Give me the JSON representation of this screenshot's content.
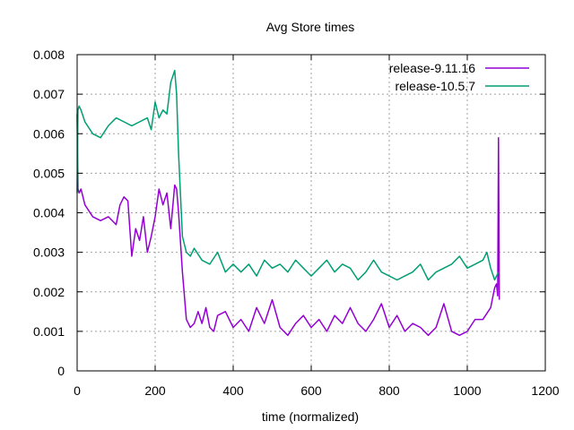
{
  "chart_data": {
    "type": "line",
    "title": "Avg Store times",
    "xlabel": "time (normalized)",
    "ylabel": "",
    "xlim": [
      0,
      1200
    ],
    "ylim": [
      0,
      0.008
    ],
    "xticks": [
      "0",
      "200",
      "400",
      "600",
      "800",
      "1000",
      "1200"
    ],
    "yticks": [
      "0",
      "0.001",
      "0.002",
      "0.003",
      "0.004",
      "0.005",
      "0.006",
      "0.007",
      "0.008"
    ],
    "grid": true,
    "legend_position": "top-right",
    "series": [
      {
        "name": "release-9.11.16",
        "color": "#9400d3",
        "x": [
          0,
          2,
          5,
          10,
          20,
          40,
          60,
          80,
          100,
          110,
          120,
          130,
          140,
          150,
          160,
          170,
          180,
          190,
          200,
          210,
          220,
          230,
          240,
          250,
          255,
          260,
          270,
          280,
          290,
          300,
          310,
          320,
          330,
          340,
          350,
          360,
          380,
          400,
          420,
          440,
          460,
          480,
          500,
          520,
          540,
          560,
          580,
          600,
          620,
          640,
          660,
          680,
          700,
          720,
          740,
          760,
          780,
          800,
          820,
          840,
          860,
          880,
          900,
          920,
          940,
          960,
          980,
          1000,
          1020,
          1040,
          1060,
          1070,
          1075,
          1078,
          1080,
          1082
        ],
        "values": [
          0.0065,
          0.0046,
          0.0045,
          0.0046,
          0.0042,
          0.0039,
          0.0038,
          0.0039,
          0.0037,
          0.0042,
          0.0044,
          0.0043,
          0.0029,
          0.0036,
          0.0033,
          0.0039,
          0.003,
          0.0034,
          0.0039,
          0.0046,
          0.0042,
          0.0045,
          0.0036,
          0.0047,
          0.0046,
          0.004,
          0.0025,
          0.0013,
          0.0011,
          0.0012,
          0.0015,
          0.0012,
          0.0016,
          0.0011,
          0.001,
          0.0014,
          0.0015,
          0.0011,
          0.0013,
          0.001,
          0.0016,
          0.0012,
          0.0018,
          0.0011,
          0.0009,
          0.0012,
          0.0014,
          0.0011,
          0.0013,
          0.001,
          0.0014,
          0.0012,
          0.0016,
          0.0012,
          0.001,
          0.0013,
          0.0017,
          0.0011,
          0.0014,
          0.001,
          0.0012,
          0.0011,
          0.0009,
          0.0011,
          0.0017,
          0.001,
          0.0009,
          0.001,
          0.0013,
          0.0013,
          0.0016,
          0.0021,
          0.0022,
          0.0019,
          0.0059,
          0.0018
        ]
      },
      {
        "name": "release-10.5.7",
        "color": "#009e73",
        "x": [
          0,
          2,
          5,
          10,
          20,
          40,
          60,
          80,
          100,
          120,
          140,
          160,
          180,
          190,
          200,
          210,
          220,
          230,
          240,
          250,
          255,
          260,
          270,
          280,
          290,
          300,
          320,
          340,
          360,
          380,
          400,
          420,
          440,
          460,
          480,
          500,
          520,
          540,
          560,
          580,
          600,
          620,
          640,
          660,
          680,
          700,
          720,
          740,
          760,
          780,
          800,
          820,
          840,
          860,
          880,
          900,
          920,
          940,
          960,
          980,
          1000,
          1020,
          1040,
          1050,
          1060,
          1070,
          1080
        ],
        "values": [
          0.0045,
          0.0066,
          0.0067,
          0.0066,
          0.0063,
          0.006,
          0.0059,
          0.0062,
          0.0064,
          0.0063,
          0.0062,
          0.0063,
          0.0064,
          0.0061,
          0.0068,
          0.0064,
          0.0066,
          0.0065,
          0.0073,
          0.0076,
          0.007,
          0.0055,
          0.0034,
          0.003,
          0.0029,
          0.0031,
          0.0028,
          0.0027,
          0.003,
          0.0025,
          0.0027,
          0.0025,
          0.0027,
          0.0024,
          0.0028,
          0.0026,
          0.0027,
          0.0025,
          0.0028,
          0.0026,
          0.0024,
          0.0026,
          0.0028,
          0.0025,
          0.0027,
          0.0026,
          0.0023,
          0.0025,
          0.0028,
          0.0025,
          0.0024,
          0.0023,
          0.0024,
          0.0025,
          0.0027,
          0.0023,
          0.0025,
          0.0026,
          0.0027,
          0.0029,
          0.0026,
          0.0027,
          0.0028,
          0.003,
          0.0026,
          0.0023,
          0.0025
        ]
      }
    ]
  }
}
